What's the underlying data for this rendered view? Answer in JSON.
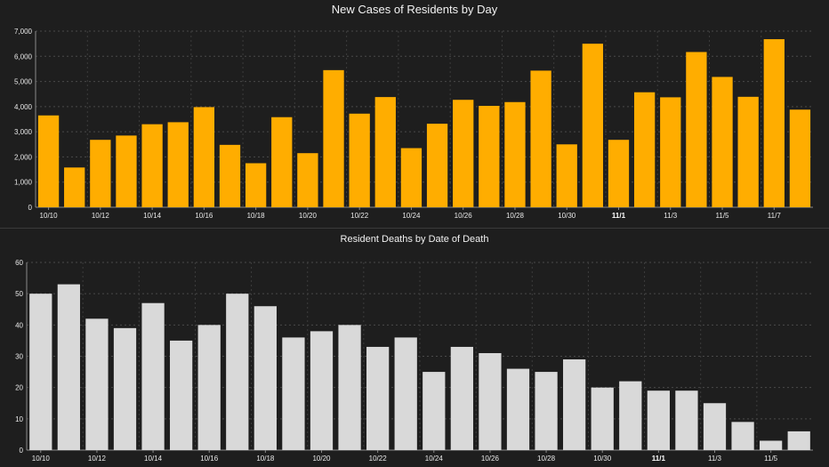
{
  "chart_data": [
    {
      "type": "bar",
      "title": "New Cases of Residents by Day",
      "color": "#ffad00",
      "categories": [
        "10/10",
        "10/11",
        "10/12",
        "10/13",
        "10/14",
        "10/15",
        "10/16",
        "10/17",
        "10/18",
        "10/19",
        "10/20",
        "10/21",
        "10/22",
        "10/23",
        "10/24",
        "10/25",
        "10/26",
        "10/27",
        "10/28",
        "10/29",
        "10/30",
        "10/31",
        "11/1",
        "11/2",
        "11/3",
        "11/4",
        "11/5",
        "11/6",
        "11/7",
        "11/8"
      ],
      "values": [
        3650,
        1580,
        2680,
        2850,
        3300,
        3380,
        3980,
        2480,
        1750,
        3580,
        2150,
        5450,
        3720,
        4380,
        2350,
        3320,
        4270,
        4030,
        4180,
        5430,
        2500,
        6500,
        2680,
        4570,
        4370,
        6170,
        5180,
        4390,
        6680,
        3880
      ],
      "xtick_labels": [
        "10/10",
        "10/12",
        "10/14",
        "10/16",
        "10/18",
        "10/20",
        "10/22",
        "10/24",
        "10/26",
        "10/28",
        "10/30",
        "11/1",
        "11/3",
        "11/5",
        "11/7"
      ],
      "xtick_bold": [
        "11/1"
      ],
      "ylim": [
        0,
        7000
      ],
      "yticks": [
        "0",
        "1,000",
        "2,000",
        "3,000",
        "4,000",
        "5,000",
        "6,000",
        "7,000"
      ],
      "grid": true
    },
    {
      "type": "bar",
      "title": "Resident Deaths by Date of Death",
      "color": "#d9d9d9",
      "categories": [
        "10/10",
        "10/11",
        "10/12",
        "10/13",
        "10/14",
        "10/15",
        "10/16",
        "10/17",
        "10/18",
        "10/19",
        "10/20",
        "10/21",
        "10/22",
        "10/23",
        "10/24",
        "10/25",
        "10/26",
        "10/27",
        "10/28",
        "10/29",
        "10/30",
        "10/31",
        "11/1",
        "11/2",
        "11/3",
        "11/4",
        "11/5",
        "11/6"
      ],
      "values": [
        50,
        53,
        42,
        39,
        47,
        35,
        40,
        50,
        46,
        36,
        38,
        40,
        33,
        36,
        25,
        33,
        31,
        26,
        25,
        29,
        20,
        22,
        19,
        19,
        15,
        9,
        3,
        6
      ],
      "xtick_labels": [
        "10/10",
        "10/12",
        "10/14",
        "10/16",
        "10/18",
        "10/20",
        "10/22",
        "10/24",
        "10/26",
        "10/28",
        "10/30",
        "11/1",
        "11/3",
        "11/5"
      ],
      "xtick_bold": [
        "11/1"
      ],
      "ylim": [
        0,
        60
      ],
      "yticks": [
        "0",
        "10",
        "20",
        "30",
        "40",
        "50",
        "60"
      ],
      "grid": true
    }
  ]
}
